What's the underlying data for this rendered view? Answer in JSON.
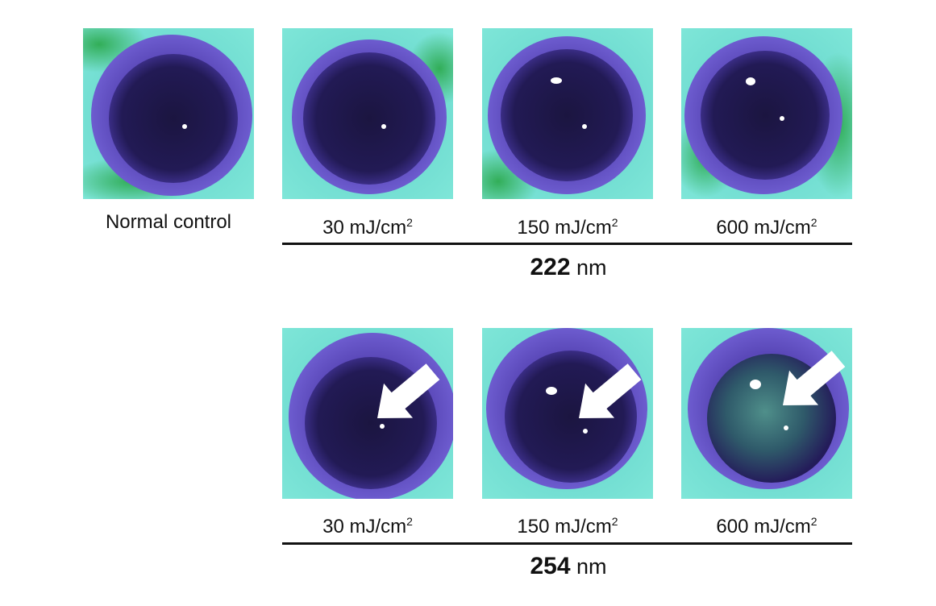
{
  "row1": {
    "control_label": "Normal control",
    "doses": [
      {
        "value": "30 mJ/cm",
        "exp": "2"
      },
      {
        "value": "150 mJ/cm",
        "exp": "2"
      },
      {
        "value": "600 mJ/cm",
        "exp": "2"
      }
    ],
    "wavelength": {
      "number": "222",
      "unit": "nm"
    }
  },
  "row2": {
    "doses": [
      {
        "value": "30 mJ/cm",
        "exp": "2"
      },
      {
        "value": "150 mJ/cm",
        "exp": "2"
      },
      {
        "value": "600 mJ/cm",
        "exp": "2"
      }
    ],
    "wavelength": {
      "number": "254",
      "unit": "nm"
    }
  }
}
